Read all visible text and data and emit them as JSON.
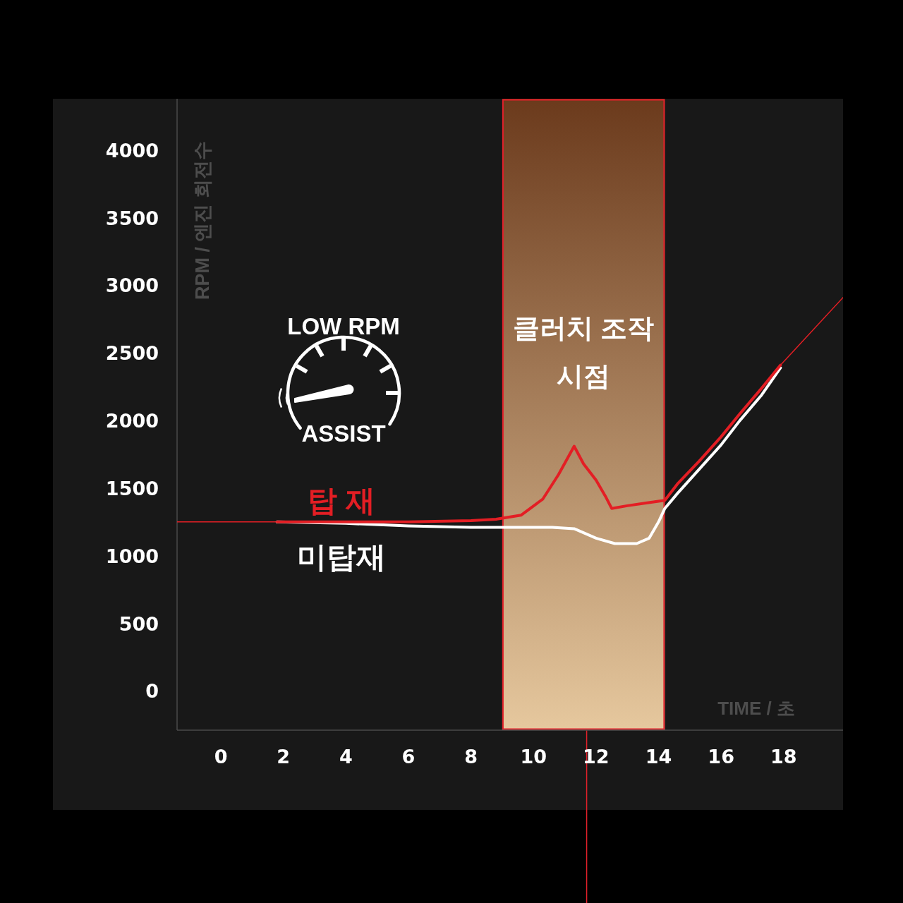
{
  "chart_data": {
    "type": "line",
    "xlabel": "TIME / 초",
    "ylabel": "RPM / 엔진 회전수",
    "annotations": [
      "LOW RPM",
      "ASSIST"
    ],
    "xlim": [
      -1.4,
      19.9
    ],
    "xticks": [
      0,
      2,
      4,
      6,
      8,
      10,
      12,
      14,
      16,
      18
    ],
    "ylim": [
      -290,
      4380
    ],
    "yticks": [
      0,
      500,
      1000,
      1500,
      2000,
      2500,
      3000,
      3500,
      4000
    ],
    "bands": [
      {
        "axis": "x",
        "from": 9.0,
        "to": 14.2,
        "label": "클러치 조작 시점",
        "color": "#6b3a1c"
      }
    ],
    "ref_lines": [
      {
        "axis": "x",
        "value": 11.7,
        "color": "#e3202a"
      }
    ],
    "series": [
      {
        "name": "탑 재",
        "color": "#e31e24",
        "x": [
          1.8,
          4,
          6,
          8,
          8.8,
          9.6,
          10.3,
          10.8,
          11.3,
          11.6,
          12.0,
          12.3,
          12.5,
          13.0,
          13.6,
          14.2,
          14.6,
          15.3,
          16.0,
          16.6,
          17.3,
          17.9
        ],
        "values": [
          1250,
          1250,
          1250,
          1260,
          1270,
          1300,
          1420,
          1600,
          1810,
          1680,
          1560,
          1440,
          1350,
          1370,
          1390,
          1410,
          1530,
          1700,
          1880,
          2050,
          2240,
          2410
        ]
      },
      {
        "name": "미탑재",
        "color": "#ffffff",
        "x": [
          1.8,
          4,
          6,
          8,
          8.8,
          9.6,
          10.6,
          11.3,
          12.0,
          12.6,
          13.3,
          13.7,
          14.0,
          14.2,
          14.6,
          15.3,
          16.0,
          16.6,
          17.3,
          17.9
        ],
        "values": [
          1250,
          1240,
          1220,
          1210,
          1210,
          1210,
          1210,
          1200,
          1130,
          1090,
          1090,
          1130,
          1250,
          1350,
          1460,
          1640,
          1820,
          2000,
          2190,
          2390
        ]
      },
      {
        "color": "#e31e24",
        "x": [
          -1.4,
          1.8
        ],
        "values": [
          1250,
          1250
        ]
      },
      {
        "color": "#e31e24",
        "x": [
          17.9,
          19.9
        ],
        "values": [
          2410,
          2910
        ]
      }
    ]
  }
}
